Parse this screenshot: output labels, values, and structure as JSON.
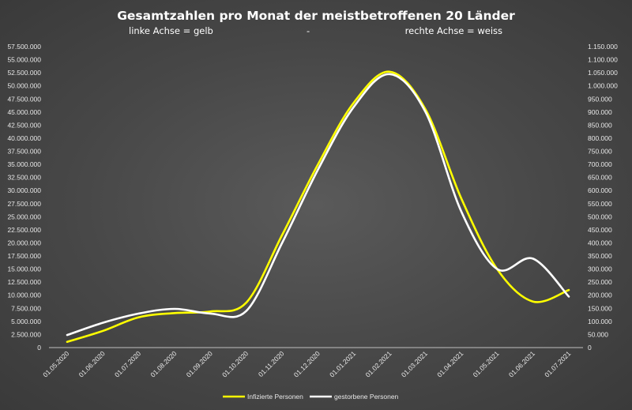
{
  "chart_data": {
    "type": "line",
    "title": "Gesamtzahlen pro Monat der meistbetroffenen 20 Länder",
    "subtitle": {
      "left": "linke Achse = gelb",
      "middle": "-",
      "right": "rechte Achse = weiss"
    },
    "x": [
      "01.05.2020",
      "01.06.2020",
      "01.07.2020",
      "01.08.2020",
      "01.09.2020",
      "01.10.2020",
      "01.11.2020",
      "01.12.2020",
      "01.01.2021",
      "01.02.2021",
      "01.03.2021",
      "01.04.2021",
      "01.05.2021",
      "01.06.2021",
      "01.07.2021"
    ],
    "y_left": {
      "min": 0,
      "max": 57500000,
      "step": 2500000,
      "tick_labels": [
        "0",
        "2.500.000",
        "5.000.000",
        "7.500.000",
        "10.000.000",
        "12.500.000",
        "15.000.000",
        "17.500.000",
        "20.000.000",
        "22.500.000",
        "25.000.000",
        "27.500.000",
        "30.000.000",
        "32.500.000",
        "35.000.000",
        "37.500.000",
        "40.000.000",
        "42.500.000",
        "45.000.000",
        "47.500.000",
        "50.000.000",
        "52.500.000",
        "55.000.000",
        "57.500.000"
      ]
    },
    "y_right": {
      "min": 0,
      "max": 1150000,
      "step": 50000,
      "tick_labels": [
        "0",
        "50.000",
        "100.000",
        "150.000",
        "200.000",
        "250.000",
        "300.000",
        "350.000",
        "400.000",
        "450.000",
        "500.000",
        "550.000",
        "600.000",
        "650.000",
        "700.000",
        "750.000",
        "800.000",
        "850.000",
        "900.000",
        "950.000",
        "1.000.000",
        "1.050.000",
        "1.100.000",
        "1.150.000"
      ]
    },
    "series": [
      {
        "name": "Infizierte Personen",
        "axis": "left",
        "color": "#ffff00",
        "values": [
          1100000,
          3200000,
          5800000,
          6600000,
          6900000,
          8600000,
          21500000,
          35000000,
          46800000,
          52700000,
          45500000,
          28500000,
          15000000,
          8800000,
          11000000
        ]
      },
      {
        "name": "gestorbene Personen",
        "axis": "right",
        "color": "#ffffff",
        "values": [
          48000,
          95000,
          130000,
          148000,
          130000,
          140000,
          400000,
          680000,
          920000,
          1045000,
          900000,
          520000,
          300000,
          340000,
          195000
        ]
      }
    ],
    "grid": false,
    "legend": "bottom"
  }
}
